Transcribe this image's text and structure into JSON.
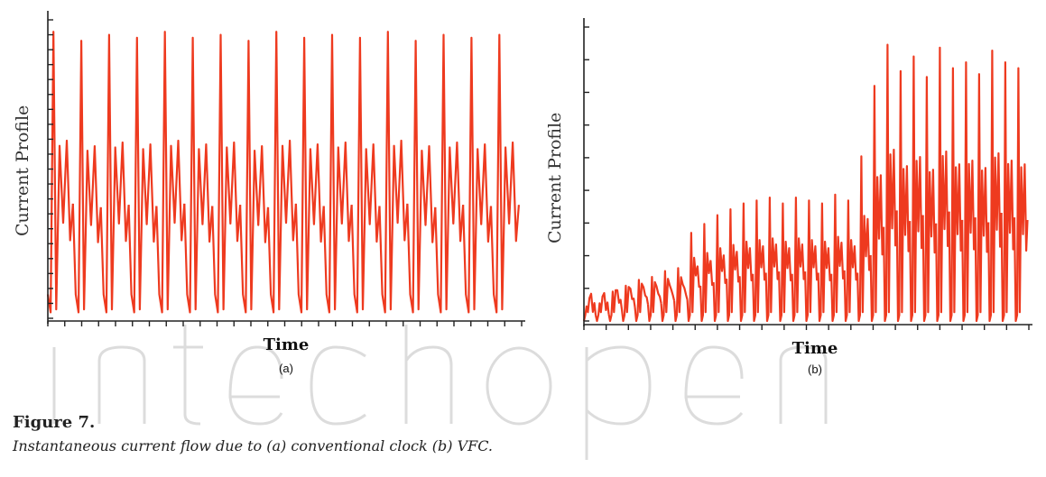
{
  "figure": {
    "title": "Figure 7.",
    "caption": "Instantaneous current flow due to (a) conventional clock (b) VFC."
  },
  "colors": {
    "trace": "#ee3a1f",
    "axis": "#222222",
    "watermark": "#d9d9d9"
  },
  "chart_data": [
    {
      "type": "line",
      "panel_label": "(a)",
      "xlabel": "Time",
      "ylabel": "Current Profile",
      "grid": false,
      "series": [
        {
          "pulses": 17,
          "peak_levels": [
            0.96,
            0.93,
            0.95,
            0.94,
            0.96,
            0.94,
            0.95,
            0.93,
            0.96,
            0.94,
            0.95,
            0.94,
            0.96,
            0.93,
            0.95,
            0.94,
            0.95
          ]
        }
      ]
    },
    {
      "type": "line",
      "panel_label": "(b)",
      "xlabel": "Time",
      "ylabel": "Current Profile",
      "grid": false,
      "series": [
        {
          "pulses": 34,
          "peak_levels": [
            0.05,
            0.06,
            0.1,
            0.12,
            0.14,
            0.15,
            0.17,
            0.18,
            0.3,
            0.33,
            0.36,
            0.38,
            0.4,
            0.41,
            0.42,
            0.4,
            0.42,
            0.41,
            0.4,
            0.43,
            0.41,
            0.56,
            0.8,
            0.94,
            0.85,
            0.9,
            0.83,
            0.93,
            0.86,
            0.88,
            0.84,
            0.92,
            0.88,
            0.86
          ]
        }
      ]
    }
  ]
}
